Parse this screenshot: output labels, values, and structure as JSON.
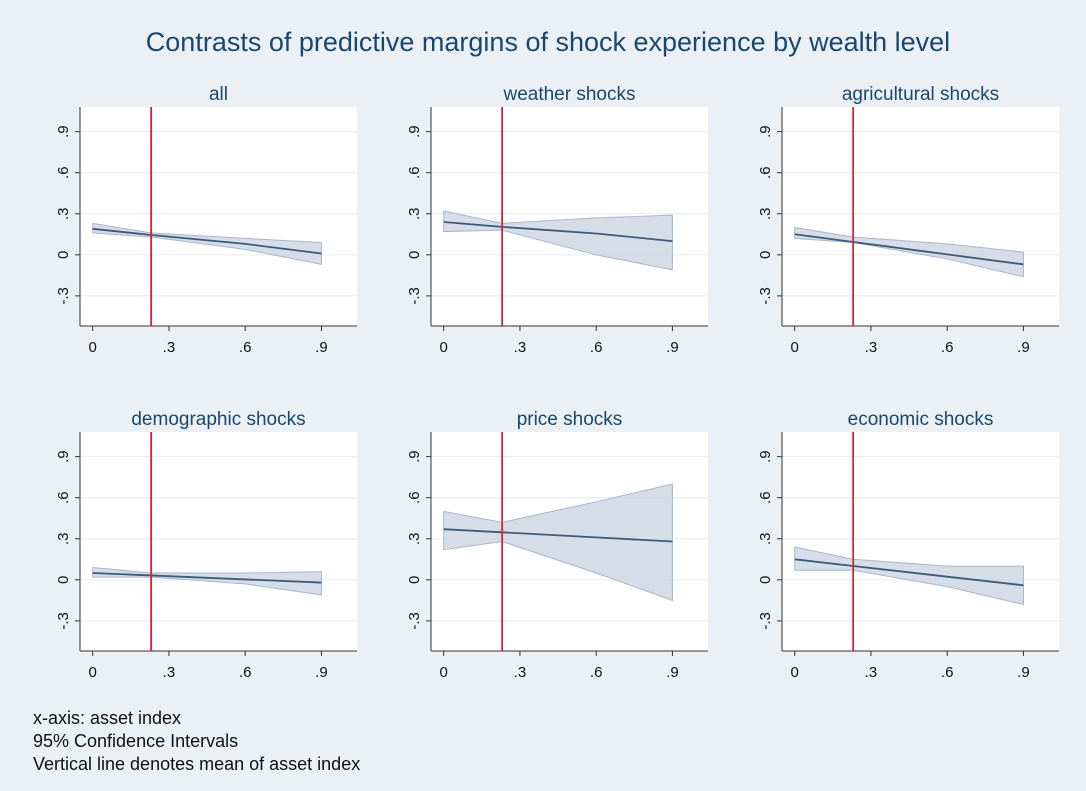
{
  "title": "Contrasts of predictive margins of shock experience by wealth level",
  "notes": [
    "x-axis: asset index",
    "95% Confidence Intervals",
    "Vertical line denotes mean of asset index"
  ],
  "chart_data": [
    {
      "type": "line",
      "title": "all",
      "x": [
        0,
        0.23,
        0.6,
        0.9
      ],
      "values": [
        0.19,
        0.145,
        0.08,
        0.01
      ],
      "lower": [
        0.16,
        0.13,
        0.04,
        -0.07
      ],
      "upper": [
        0.23,
        0.16,
        0.12,
        0.09
      ],
      "vline": 0.23,
      "color": "#3e5a78",
      "band_color": "#cbd5e2",
      "vline_color": "#c8283c",
      "grid": true,
      "xlim": [
        -0.05,
        1.04
      ],
      "ylim": [
        -0.52,
        1.08
      ],
      "xticks": [
        0,
        {
          "value": 0.3,
          "label": ".3"
        },
        {
          "value": 0.6,
          "label": ".6"
        },
        {
          "value": 0.9,
          "label": ".9"
        }
      ],
      "yticks": [
        {
          "value": -0.3,
          "label": "-.3"
        },
        0,
        {
          "value": 0.3,
          "label": ".3"
        },
        {
          "value": 0.6,
          "label": ".6"
        },
        {
          "value": 0.9,
          "label": ".9"
        }
      ]
    },
    {
      "type": "line",
      "title": "weather shocks",
      "x": [
        0,
        0.23,
        0.6,
        0.9
      ],
      "values": [
        0.24,
        0.204,
        0.156,
        0.1
      ],
      "lower": [
        0.17,
        0.18,
        0.0,
        -0.11
      ],
      "upper": [
        0.32,
        0.23,
        0.27,
        0.29
      ],
      "vline": 0.23,
      "color": "#3e5a78",
      "band_color": "#cbd5e2",
      "vline_color": "#c8283c",
      "grid": true,
      "xlim": [
        -0.05,
        1.04
      ],
      "ylim": [
        -0.52,
        1.08
      ],
      "xticks": [
        0,
        {
          "value": 0.3,
          "label": ".3"
        },
        {
          "value": 0.6,
          "label": ".6"
        },
        {
          "value": 0.9,
          "label": ".9"
        }
      ],
      "yticks": [
        {
          "value": -0.3,
          "label": "-.3"
        },
        0,
        {
          "value": 0.3,
          "label": ".3"
        },
        {
          "value": 0.6,
          "label": ".6"
        },
        {
          "value": 0.9,
          "label": ".9"
        }
      ]
    },
    {
      "type": "line",
      "title": "agricultural shocks",
      "x": [
        0,
        0.23,
        0.6,
        0.9
      ],
      "values": [
        0.15,
        0.094,
        0.003,
        -0.07
      ],
      "lower": [
        0.12,
        0.09,
        -0.03,
        -0.16
      ],
      "upper": [
        0.2,
        0.13,
        0.08,
        0.02
      ],
      "vline": 0.23,
      "color": "#3e5a78",
      "band_color": "#cbd5e2",
      "vline_color": "#c8283c",
      "grid": true,
      "xlim": [
        -0.05,
        1.04
      ],
      "ylim": [
        -0.52,
        1.08
      ],
      "xticks": [
        0,
        {
          "value": 0.3,
          "label": ".3"
        },
        {
          "value": 0.6,
          "label": ".6"
        },
        {
          "value": 0.9,
          "label": ".9"
        }
      ],
      "yticks": [
        {
          "value": -0.3,
          "label": "-.3"
        },
        0,
        {
          "value": 0.3,
          "label": ".3"
        },
        {
          "value": 0.6,
          "label": ".6"
        },
        {
          "value": 0.9,
          "label": ".9"
        }
      ]
    },
    {
      "type": "line",
      "title": "demographic shocks",
      "x": [
        0,
        0.23,
        0.6,
        0.9
      ],
      "values": [
        0.05,
        0.032,
        0.003,
        -0.02
      ],
      "lower": [
        0.02,
        0.02,
        -0.03,
        -0.11
      ],
      "upper": [
        0.09,
        0.05,
        0.05,
        0.06
      ],
      "vline": 0.23,
      "color": "#3e5a78",
      "band_color": "#cbd5e2",
      "vline_color": "#c8283c",
      "grid": true,
      "xlim": [
        -0.05,
        1.04
      ],
      "ylim": [
        -0.52,
        1.08
      ],
      "xticks": [
        0,
        {
          "value": 0.3,
          "label": ".3"
        },
        {
          "value": 0.6,
          "label": ".6"
        },
        {
          "value": 0.9,
          "label": ".9"
        }
      ],
      "yticks": [
        {
          "value": -0.3,
          "label": "-.3"
        },
        0,
        {
          "value": 0.3,
          "label": ".3"
        },
        {
          "value": 0.6,
          "label": ".6"
        },
        {
          "value": 0.9,
          "label": ".9"
        }
      ]
    },
    {
      "type": "line",
      "title": "price shocks",
      "x": [
        0,
        0.23,
        0.6,
        0.9
      ],
      "values": [
        0.37,
        0.347,
        0.31,
        0.28
      ],
      "lower": [
        0.22,
        0.28,
        0.05,
        -0.15
      ],
      "upper": [
        0.5,
        0.42,
        0.57,
        0.7
      ],
      "vline": 0.23,
      "color": "#3e5a78",
      "band_color": "#cbd5e2",
      "vline_color": "#c8283c",
      "grid": true,
      "xlim": [
        -0.05,
        1.04
      ],
      "ylim": [
        -0.52,
        1.08
      ],
      "xticks": [
        0,
        {
          "value": 0.3,
          "label": ".3"
        },
        {
          "value": 0.6,
          "label": ".6"
        },
        {
          "value": 0.9,
          "label": ".9"
        }
      ],
      "yticks": [
        {
          "value": -0.3,
          "label": "-.3"
        },
        0,
        {
          "value": 0.3,
          "label": ".3"
        },
        {
          "value": 0.6,
          "label": ".6"
        },
        {
          "value": 0.9,
          "label": ".9"
        }
      ]
    },
    {
      "type": "line",
      "title": "economic shocks",
      "x": [
        0,
        0.23,
        0.6,
        0.9
      ],
      "values": [
        0.15,
        0.101,
        0.023,
        -0.04
      ],
      "lower": [
        0.07,
        0.07,
        -0.05,
        -0.18
      ],
      "upper": [
        0.24,
        0.15,
        0.1,
        0.1
      ],
      "vline": 0.23,
      "color": "#3e5a78",
      "band_color": "#cbd5e2",
      "vline_color": "#c8283c",
      "grid": true,
      "xlim": [
        -0.05,
        1.04
      ],
      "ylim": [
        -0.52,
        1.08
      ],
      "xticks": [
        0,
        {
          "value": 0.3,
          "label": ".3"
        },
        {
          "value": 0.6,
          "label": ".6"
        },
        {
          "value": 0.9,
          "label": ".9"
        }
      ],
      "yticks": [
        {
          "value": -0.3,
          "label": "-.3"
        },
        0,
        {
          "value": 0.3,
          "label": ".3"
        },
        {
          "value": 0.6,
          "label": ".6"
        },
        {
          "value": 0.9,
          "label": ".9"
        }
      ]
    }
  ]
}
